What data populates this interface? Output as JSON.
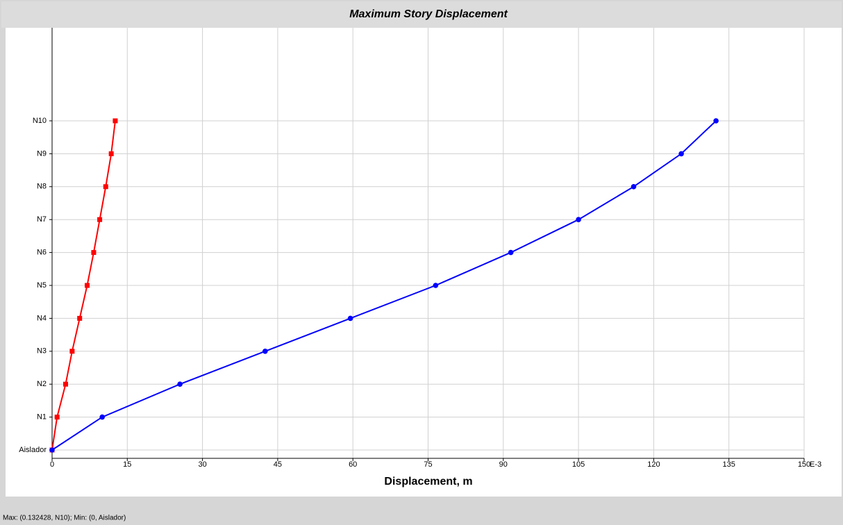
{
  "chart_data": {
    "type": "line",
    "title": "Maximum Story Displacement",
    "xlabel": "Displacement, m",
    "x_unit_label": "E-3",
    "categories": [
      "Aislador",
      "N1",
      "N2",
      "N3",
      "N4",
      "N5",
      "N6",
      "N7",
      "N8",
      "N9",
      "N10"
    ],
    "series": [
      {
        "color": "#ff0000",
        "marker": "square",
        "values": [
          0,
          1,
          2.7,
          4,
          5.5,
          7,
          8.3,
          9.5,
          10.7,
          11.8,
          12.6
        ]
      },
      {
        "color": "#0000ff",
        "marker": "circle",
        "values": [
          0,
          10,
          25.5,
          42.5,
          59.5,
          76.5,
          91.5,
          105,
          116,
          125.5,
          132.428
        ]
      }
    ],
    "xlim": [
      0,
      150
    ],
    "xticks": [
      0,
      15,
      30,
      45,
      60,
      75,
      90,
      105,
      120,
      135,
      150
    ],
    "grid": true,
    "status_text": "Max: (0.132428, N10);   Min: (0, Aislador)"
  }
}
